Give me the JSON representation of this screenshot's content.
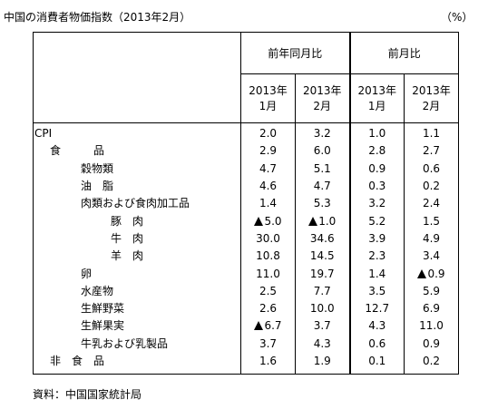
{
  "title": "中国の消費者物価指数（2013年2月）",
  "unit": "（%）",
  "source": "資料：中国国家統計局",
  "headers": {
    "group_yoy": "前年同月比",
    "group_mom": "前月比",
    "col1_year": "2013年",
    "col1_month": "1月",
    "col2_year": "2013年",
    "col2_month": "2月",
    "col3_year": "2013年",
    "col3_month": "1月",
    "col4_year": "2013年",
    "col4_month": "2月"
  },
  "rows": [
    {
      "label": "CPI",
      "level": 0,
      "values": [
        "2.0",
        "3.2",
        "1.0",
        "1.1"
      ],
      "negative": [
        false,
        false,
        false,
        false
      ]
    },
    {
      "label": "食　　　品",
      "level": 1,
      "values": [
        "2.9",
        "6.0",
        "2.8",
        "2.7"
      ],
      "negative": [
        false,
        false,
        false,
        false
      ]
    },
    {
      "label": "穀物類",
      "level": 2,
      "values": [
        "4.7",
        "5.1",
        "0.9",
        "0.6"
      ],
      "negative": [
        false,
        false,
        false,
        false
      ]
    },
    {
      "label": "油　脂",
      "level": 2,
      "values": [
        "4.6",
        "4.7",
        "0.3",
        "0.2"
      ],
      "negative": [
        false,
        false,
        false,
        false
      ]
    },
    {
      "label": "肉類および食肉加工品",
      "level": 2,
      "values": [
        "1.4",
        "5.3",
        "3.2",
        "2.4"
      ],
      "negative": [
        false,
        false,
        false,
        false
      ]
    },
    {
      "label": "豚　肉",
      "level": 3,
      "values": [
        "5.0",
        "1.0",
        "5.2",
        "1.5"
      ],
      "negative": [
        true,
        true,
        false,
        false
      ]
    },
    {
      "label": "牛　肉",
      "level": 3,
      "values": [
        "30.0",
        "34.6",
        "3.9",
        "4.9"
      ],
      "negative": [
        false,
        false,
        false,
        false
      ]
    },
    {
      "label": "羊　肉",
      "level": 3,
      "values": [
        "10.8",
        "14.5",
        "2.3",
        "3.4"
      ],
      "negative": [
        false,
        false,
        false,
        false
      ]
    },
    {
      "label": "卵",
      "level": 2,
      "values": [
        "11.0",
        "19.7",
        "1.4",
        "0.9"
      ],
      "negative": [
        false,
        false,
        false,
        true
      ]
    },
    {
      "label": "水産物",
      "level": 2,
      "values": [
        "2.5",
        "7.7",
        "3.5",
        "5.9"
      ],
      "negative": [
        false,
        false,
        false,
        false
      ]
    },
    {
      "label": "生鮮野菜",
      "level": 2,
      "values": [
        "2.6",
        "10.0",
        "12.7",
        "6.9"
      ],
      "negative": [
        false,
        false,
        false,
        false
      ]
    },
    {
      "label": "生鮮果実",
      "level": 2,
      "values": [
        "6.7",
        "3.7",
        "4.3",
        "11.0"
      ],
      "negative": [
        true,
        false,
        false,
        false
      ]
    },
    {
      "label": "牛乳および乳製品",
      "level": 2,
      "values": [
        "3.7",
        "4.3",
        "0.6",
        "0.9"
      ],
      "negative": [
        false,
        false,
        false,
        false
      ]
    },
    {
      "label": "非　食　品",
      "level": 1,
      "values": [
        "1.6",
        "1.9",
        "0.1",
        "0.2"
      ],
      "negative": [
        false,
        false,
        false,
        false
      ]
    }
  ]
}
